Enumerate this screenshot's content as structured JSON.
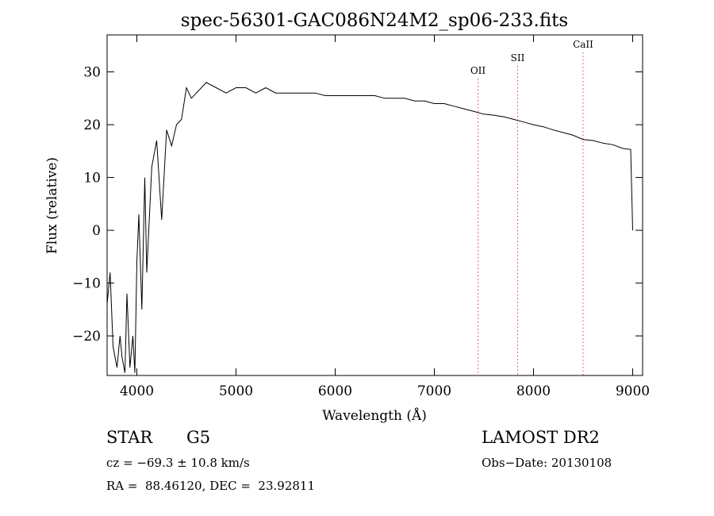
{
  "chart_data": {
    "type": "line",
    "title": "spec-56301-GAC086N24M2_sp06-233.fits",
    "xlabel": "Wavelength (Å)",
    "ylabel": "Flux (relative)",
    "xlim": [
      3700,
      9100
    ],
    "ylim": [
      -27.5,
      37
    ],
    "xticks": [
      4000,
      5000,
      6000,
      7000,
      8000,
      9000
    ],
    "yticks": [
      -20,
      -10,
      0,
      10,
      20,
      30
    ],
    "grid": false,
    "series": [
      {
        "x": [
          3700,
          3730,
          3760,
          3800,
          3830,
          3850,
          3880,
          3900,
          3930,
          3960,
          3980,
          4000,
          4020,
          4050,
          4080,
          4100,
          4150,
          4200,
          4250,
          4300,
          4350,
          4400,
          4450,
          4500,
          4550,
          4600,
          4700,
          4800,
          4900,
          5000,
          5100,
          5200,
          5300,
          5400,
          5500,
          5600,
          5700,
          5800,
          5900,
          6000,
          6100,
          6200,
          6300,
          6400,
          6500,
          6600,
          6700,
          6800,
          6900,
          7000,
          7100,
          7200,
          7300,
          7400,
          7500,
          7600,
          7700,
          7800,
          7900,
          8000,
          8100,
          8200,
          8300,
          8400,
          8500,
          8600,
          8700,
          8800,
          8900,
          8980,
          9000
        ],
        "values": [
          -14,
          -8,
          -22,
          -26,
          -20,
          -24,
          -27,
          -12,
          -26,
          -20,
          -27,
          -6,
          3,
          -15,
          10,
          -8,
          12,
          17,
          2,
          19,
          16,
          20,
          21,
          27,
          25,
          26,
          28,
          27,
          26,
          27,
          27,
          26,
          27,
          26,
          26,
          26,
          26,
          26,
          25.5,
          25.5,
          25.5,
          25.5,
          25.5,
          25.5,
          25,
          25,
          25,
          24.5,
          24.5,
          24,
          24,
          23.5,
          23,
          22.5,
          22,
          21.8,
          21.5,
          21,
          20.5,
          20,
          19.6,
          19,
          18.5,
          18,
          17.2,
          17,
          16.5,
          16.2,
          15.5,
          15.3,
          0
        ]
      }
    ],
    "annotations": [
      {
        "label": "OII",
        "x": 7440
      },
      {
        "label": "SII",
        "x": 7840
      },
      {
        "label": "CaII",
        "x": 8500
      }
    ],
    "annotation_color": "#e04040",
    "line_color": "#000000"
  },
  "info": {
    "object_class": "STAR",
    "subclass": "G5",
    "survey": "LAMOST DR2",
    "redshift": "cz = −69.3 ± 10.8 km/s",
    "obs_date": "Obs−Date: 20130108",
    "coordinates": "RA =  88.46120, DEC =  23.92811"
  }
}
